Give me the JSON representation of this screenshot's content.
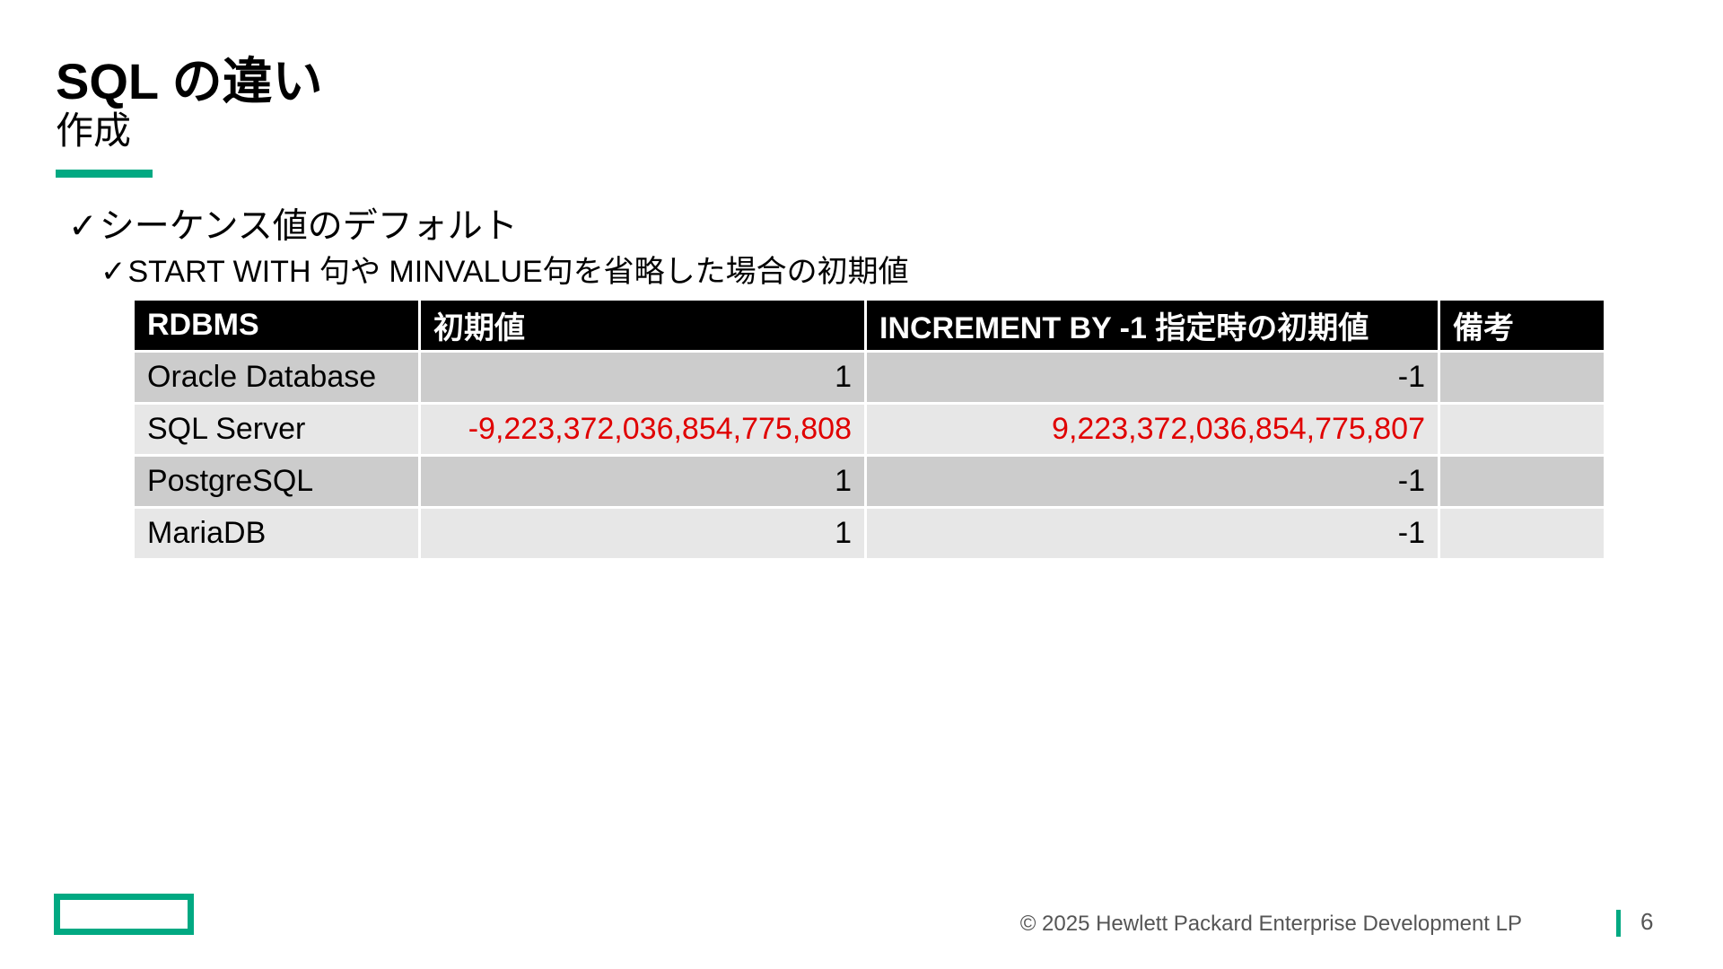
{
  "slide": {
    "title": "SQL の違い",
    "subtitle": "作成",
    "check_mark": "✓",
    "bullet_1": "シーケンス値のデフォルト",
    "bullet_2": "START WITH 句や MINVALUE句を省略した場合の初期値"
  },
  "table": {
    "headers": [
      "RDBMS",
      "初期値",
      "INCREMENT BY -1 指定時の初期値",
      "備考"
    ],
    "rows": [
      {
        "rdbms": "Oracle Database",
        "initial": "1",
        "initial_decrement": "-1",
        "note": ""
      },
      {
        "rdbms": "SQL Server",
        "initial": "-9,223,372,036,854,775,808",
        "initial_decrement": "9,223,372,036,854,775,807",
        "note": ""
      },
      {
        "rdbms": "PostgreSQL",
        "initial": "1",
        "initial_decrement": "-1",
        "note": ""
      },
      {
        "rdbms": "MariaDB",
        "initial": "1",
        "initial_decrement": "-1",
        "note": ""
      }
    ],
    "highlight_color": "#e00000"
  },
  "footer": {
    "copyright": "© 2025 Hewlett Packard Enterprise Development LP",
    "page_number": "6",
    "accent_color": "#01a982"
  },
  "logo": {
    "icon": "hpe-element-logo-icon"
  }
}
